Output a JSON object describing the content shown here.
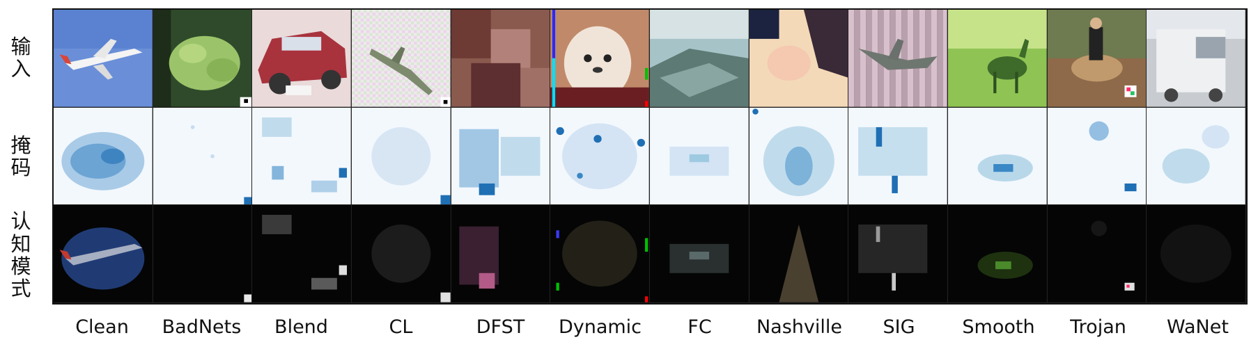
{
  "row_labels": [
    "输入",
    "掩码",
    "认知模式"
  ],
  "columns": [
    "Clean",
    "BadNets",
    "Blend",
    "CL",
    "DFST",
    "Dynamic",
    "FC",
    "Nashville",
    "SIG",
    "Smooth",
    "Trojan",
    "WaNet"
  ],
  "colors": {
    "mask_tint": "#1f6fb4",
    "mask_bg": "#f3f8fd",
    "cog_bg": "#050505"
  }
}
